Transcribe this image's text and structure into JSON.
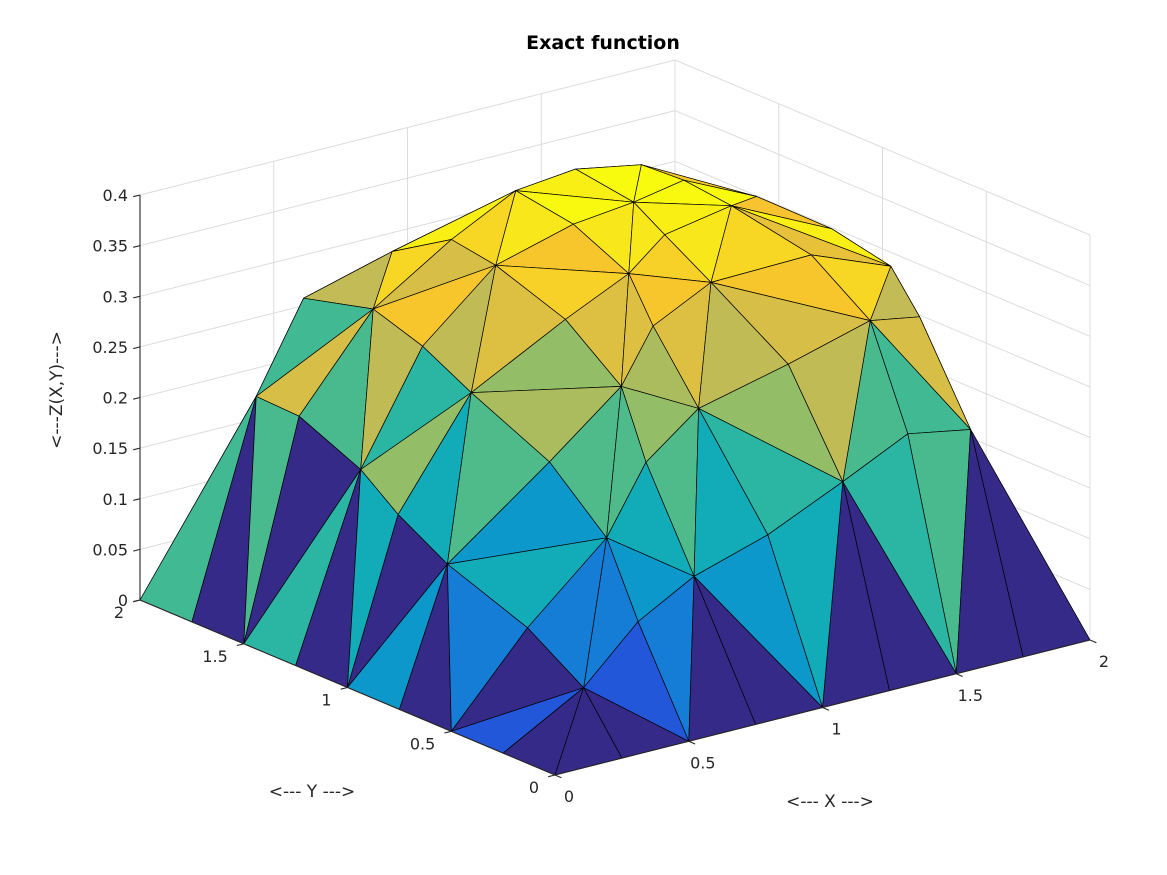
{
  "title": "Exact function",
  "chart_data": {
    "type": "surface3d",
    "title": "Exact function",
    "xlabel": "<--- X --->",
    "ylabel": "<--- Y --->",
    "zlabel": "<---Z(X,Y)--->",
    "x": [
      0,
      0.25,
      0.5,
      0.75,
      1,
      1.25,
      1.5,
      1.75,
      2
    ],
    "y": [
      0,
      0.25,
      0.5,
      0.75,
      1,
      1.25,
      1.5,
      1.75,
      2
    ],
    "z": [
      [
        0,
        0,
        0,
        0,
        0,
        0,
        0,
        0,
        0
      ],
      [
        0,
        0.047,
        0.089,
        0.125,
        0.157,
        0.185,
        0.207,
        0.202,
        0
      ],
      [
        0,
        0.089,
        0.157,
        0.211,
        0.253,
        0.285,
        0.305,
        0.286,
        0
      ],
      [
        0,
        0.125,
        0.211,
        0.27,
        0.311,
        0.338,
        0.351,
        0.321,
        0
      ],
      [
        0,
        0.157,
        0.253,
        0.311,
        0.346,
        0.366,
        0.373,
        0.335,
        0
      ],
      [
        0,
        0.185,
        0.285,
        0.338,
        0.366,
        0.381,
        0.383,
        0.341,
        0
      ],
      [
        0,
        0.207,
        0.305,
        0.351,
        0.373,
        0.383,
        0.381,
        0.338,
        0
      ],
      [
        0,
        0.202,
        0.286,
        0.321,
        0.335,
        0.341,
        0.338,
        0.299,
        0
      ],
      [
        0,
        0,
        0,
        0,
        0,
        0,
        0,
        0,
        0
      ]
    ],
    "xlim": [
      0,
      2
    ],
    "ylim": [
      0,
      2
    ],
    "zlim": [
      0,
      0.4
    ],
    "xticks": [
      0,
      0.5,
      1,
      1.5,
      2
    ],
    "yticks": [
      0,
      0.5,
      1,
      1.5,
      2
    ],
    "zticks": [
      0,
      0.05,
      0.1,
      0.15,
      0.2,
      0.25,
      0.3,
      0.35,
      0.4
    ],
    "view": {
      "azimuth": -37.5,
      "elevation": 30
    },
    "grid": true,
    "colormap": "parula",
    "colormap_stops": [
      "#352a87",
      "#2258dc",
      "#1483d6",
      "#07a6c2",
      "#2fb89e",
      "#7fbf6e",
      "#c4bb55",
      "#f7c32f",
      "#f9fb0e"
    ],
    "edge_color": "#000000",
    "grid_color": "#dcdcdc",
    "axis_color": "#262626",
    "tick_label_color": "#262626",
    "background": "#ffffff"
  }
}
